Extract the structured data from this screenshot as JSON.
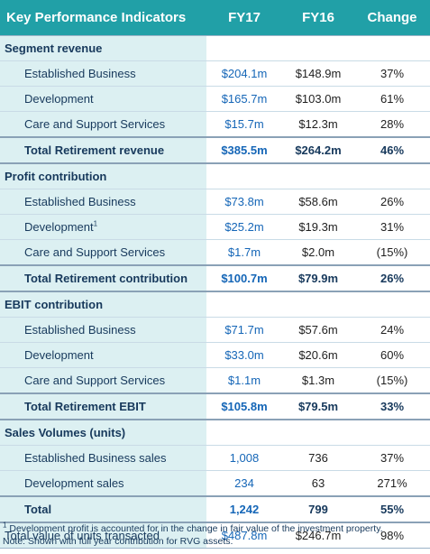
{
  "header": {
    "title": "Key Performance Indicators",
    "col_fy17": "FY17",
    "col_fy16": "FY16",
    "col_change": "Change"
  },
  "colors": {
    "header_bg": "#21a0a7",
    "label_bg": "#dcf0f2",
    "fy17_text": "#1566b7",
    "text": "#17395c"
  },
  "sections": [
    {
      "title": "Segment revenue",
      "rows": [
        {
          "label": "Established Business",
          "fy17": "$204.1m",
          "fy16": "$148.9m",
          "change": "37%"
        },
        {
          "label": "Development",
          "fy17": "$165.7m",
          "fy16": "$103.0m",
          "change": "61%"
        },
        {
          "label": "Care and Support Services",
          "fy17": "$15.7m",
          "fy16": "$12.3m",
          "change": "28%"
        }
      ],
      "total": {
        "label": "Total Retirement revenue",
        "fy17": "$385.5m",
        "fy16": "$264.2m",
        "change": "46%"
      }
    },
    {
      "title": "Profit contribution",
      "rows": [
        {
          "label": "Established Business",
          "fy17": "$73.8m",
          "fy16": "$58.6m",
          "change": "26%"
        },
        {
          "label": "Development",
          "footnote_mark": "1",
          "fy17": "$25.2m",
          "fy16": "$19.3m",
          "change": "31%"
        },
        {
          "label": "Care and Support Services",
          "fy17": "$1.7m",
          "fy16": "$2.0m",
          "change": "(15%)"
        }
      ],
      "total": {
        "label": "Total Retirement contribution",
        "fy17": "$100.7m",
        "fy16": "$79.9m",
        "change": "26%"
      }
    },
    {
      "title": "EBIT contribution",
      "rows": [
        {
          "label": "Established Business",
          "fy17": "$71.7m",
          "fy16": "$57.6m",
          "change": "24%"
        },
        {
          "label": "Development",
          "fy17": "$33.0m",
          "fy16": "$20.6m",
          "change": "60%"
        },
        {
          "label": "Care and Support Services",
          "fy17": "$1.1m",
          "fy16": "$1.3m",
          "change": "(15%)"
        }
      ],
      "total": {
        "label": "Total Retirement EBIT",
        "fy17": "$105.8m",
        "fy16": "$79.5m",
        "change": "33%"
      }
    },
    {
      "title": "Sales Volumes (units)",
      "rows": [
        {
          "label": "Established Business sales",
          "fy17": "1,008",
          "fy16": "736",
          "change": "37%"
        },
        {
          "label": "Development sales",
          "fy17": "234",
          "fy16": "63",
          "change": "271%"
        }
      ],
      "total": {
        "label": "Total",
        "fy17": "1,242",
        "fy16": "799",
        "change": "55%"
      }
    }
  ],
  "grand_total": {
    "label": "Total value of units transacted",
    "fy17": "$487.8m",
    "fy16": "$246.7m",
    "change": "98%"
  },
  "footnotes": {
    "footnote_1_mark": "1",
    "footnote_1": "Development profit is accounted for in the change in fair value of the investment property.",
    "note": "Note: Shown with full year contribution for RVG assets."
  }
}
